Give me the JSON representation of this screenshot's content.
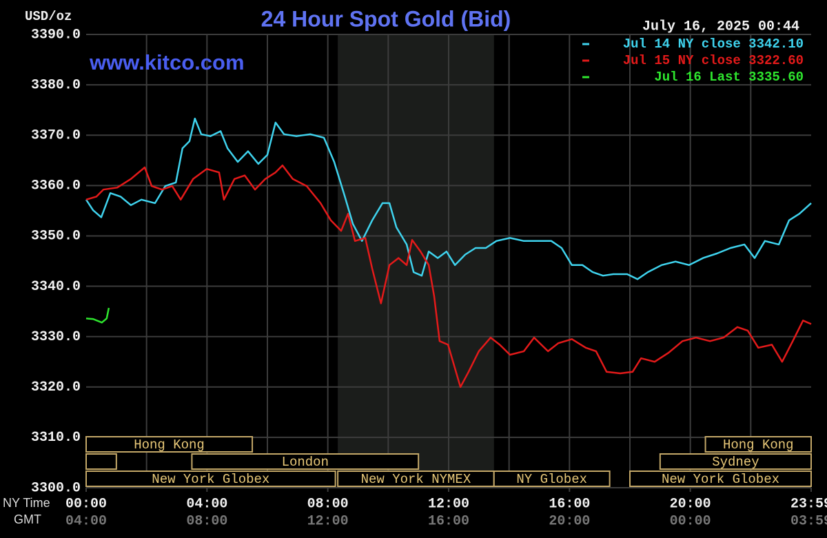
{
  "chart_data": {
    "type": "line",
    "title": "24 Hour Spot Gold (Bid)",
    "timestamp": "July 16, 2025 00:44",
    "watermark": "www.kitco.com",
    "y_label": "USD/oz",
    "x_label": "NY Time",
    "x2_label": "GMT",
    "xlim": [
      0,
      24
    ],
    "ylim": [
      3300,
      3390
    ],
    "yticks": [
      {
        "value": 3300,
        "label": "3300.0"
      },
      {
        "value": 3310,
        "label": "3310.0"
      },
      {
        "value": 3320,
        "label": "3320.0"
      },
      {
        "value": 3330,
        "label": "3330.0"
      },
      {
        "value": 3340,
        "label": "3340.0"
      },
      {
        "value": 3350,
        "label": "3350.0"
      },
      {
        "value": 3360,
        "label": "3360.0"
      },
      {
        "value": 3370,
        "label": "3370.0"
      },
      {
        "value": 3380,
        "label": "3380.0"
      },
      {
        "value": 3390,
        "label": "3390.0"
      }
    ],
    "xticks": [
      {
        "value": 0,
        "label": "00:00",
        "gmt": "04:00"
      },
      {
        "value": 4,
        "label": "04:00",
        "gmt": "08:00"
      },
      {
        "value": 8,
        "label": "08:00",
        "gmt": "12:00"
      },
      {
        "value": 12,
        "label": "12:00",
        "gmt": "16:00"
      },
      {
        "value": 16,
        "label": "16:00",
        "gmt": "20:00"
      },
      {
        "value": 20,
        "label": "20:00",
        "gmt": "00:00"
      },
      {
        "value": 24,
        "label": "23:59",
        "gmt": "03:59"
      }
    ],
    "xgrid": [
      2,
      4,
      6,
      8,
      10,
      12,
      14,
      16,
      18,
      20,
      22
    ],
    "grid": true,
    "shaded": {
      "start": 8.33,
      "end": 13.5
    },
    "legend": "top-right",
    "series": [
      {
        "name": "Jul 14 NY close 3342.10",
        "color": "#3fd3ee",
        "x": [
          0,
          0.23,
          0.5,
          0.8,
          1.14,
          1.48,
          1.83,
          2.28,
          2.62,
          2.97,
          3.19,
          3.42,
          3.6,
          3.81,
          4.11,
          4.45,
          4.68,
          5.02,
          5.36,
          5.7,
          6,
          6.27,
          6.55,
          6.96,
          7.42,
          7.87,
          8.21,
          8.56,
          8.83,
          9.13,
          9.47,
          9.81,
          10.04,
          10.27,
          10.61,
          10.84,
          11.11,
          11.34,
          11.64,
          11.93,
          12.21,
          12.55,
          12.89,
          13.23,
          13.58,
          14.03,
          14.49,
          14.94,
          15.4,
          15.74,
          16.08,
          16.43,
          16.77,
          17.11,
          17.45,
          17.91,
          18.25,
          18.59,
          19.05,
          19.51,
          19.96,
          20.42,
          20.88,
          21.33,
          21.79,
          22.13,
          22.47,
          22.93,
          23.27,
          23.61,
          24
        ],
        "values": [
          3357.2,
          3355.1,
          3353.7,
          3358.5,
          3357.8,
          3356.1,
          3357.2,
          3356.5,
          3359.9,
          3360.6,
          3367.4,
          3368.8,
          3373.3,
          3370.2,
          3369.8,
          3370.8,
          3367.4,
          3364.7,
          3366.8,
          3364.3,
          3366.1,
          3372.5,
          3370.2,
          3369.8,
          3370.2,
          3369.5,
          3364.7,
          3357.9,
          3352.4,
          3349.0,
          3353.1,
          3356.5,
          3356.5,
          3351.7,
          3348.3,
          3342.8,
          3342.1,
          3346.9,
          3345.6,
          3346.9,
          3344.2,
          3346.3,
          3347.6,
          3347.6,
          3349.0,
          3349.6,
          3349.0,
          3349.0,
          3349.0,
          3347.6,
          3344.2,
          3344.2,
          3342.8,
          3342.1,
          3342.4,
          3342.4,
          3341.4,
          3342.8,
          3344.2,
          3344.9,
          3344.2,
          3345.6,
          3346.5,
          3347.6,
          3348.3,
          3345.6,
          3349.0,
          3348.3,
          3353.1,
          3354.4,
          3356.5
        ]
      },
      {
        "name": "Jul 15 NY close 3322.60",
        "color": "#e41a1a",
        "x": [
          0,
          0.34,
          0.57,
          1.03,
          1.48,
          1.94,
          2.17,
          2.51,
          2.85,
          3.13,
          3.54,
          3.99,
          4.4,
          4.56,
          4.91,
          5.25,
          5.59,
          5.93,
          6.27,
          6.5,
          6.84,
          7.3,
          7.76,
          8.1,
          8.44,
          8.67,
          8.9,
          9.24,
          9.47,
          9.76,
          10.04,
          10.34,
          10.61,
          10.79,
          11.07,
          11.34,
          11.52,
          11.7,
          11.98,
          12.39,
          12.66,
          13,
          13.39,
          13.69,
          14.03,
          14.49,
          14.83,
          15.29,
          15.63,
          16.08,
          16.54,
          16.88,
          17.23,
          17.68,
          18.09,
          18.37,
          18.82,
          19.28,
          19.74,
          20.19,
          20.65,
          21.1,
          21.56,
          21.9,
          22.25,
          22.7,
          23.04,
          23.39,
          23.73,
          24
        ],
        "values": [
          3357.2,
          3357.8,
          3359.2,
          3359.6,
          3361.3,
          3363.6,
          3359.9,
          3359.2,
          3359.9,
          3357.2,
          3361.3,
          3363.3,
          3362.6,
          3357.2,
          3361.3,
          3362.0,
          3359.2,
          3361.3,
          3362.6,
          3364.0,
          3361.3,
          3359.9,
          3356.5,
          3353.1,
          3351.0,
          3354.4,
          3349.0,
          3349.6,
          3343.5,
          3336.6,
          3344.2,
          3345.6,
          3344.2,
          3349.2,
          3346.9,
          3344.2,
          3338.0,
          3329.1,
          3328.4,
          3320.0,
          3323.0,
          3327.1,
          3329.8,
          3328.4,
          3326.4,
          3327.1,
          3329.8,
          3327.1,
          3328.7,
          3329.5,
          3327.8,
          3327.1,
          3323.0,
          3322.7,
          3323.0,
          3325.7,
          3325.0,
          3326.8,
          3329.1,
          3329.8,
          3329.1,
          3329.8,
          3331.9,
          3331.2,
          3327.8,
          3328.4,
          3325.0,
          3329.1,
          3333.2,
          3332.5
        ]
      },
      {
        "name": "Jul 16 Last 3335.60",
        "color": "#2ee62e",
        "x": [
          0,
          0.23,
          0.52,
          0.68,
          0.75
        ],
        "values": [
          3333.6,
          3333.5,
          3332.8,
          3333.6,
          3335.7
        ]
      }
    ],
    "sessions": [
      {
        "row": 1,
        "start": 0,
        "end": 5.5,
        "label": "Hong Kong"
      },
      {
        "row": 1,
        "start": 20.5,
        "end": 24,
        "label": "Hong Kong"
      },
      {
        "row": 2,
        "start": 0,
        "end": 1
      },
      {
        "row": 2,
        "start": 3.5,
        "end": 11,
        "label": "London"
      },
      {
        "row": 2,
        "start": 19,
        "end": 24,
        "label": "Sydney"
      },
      {
        "row": 3,
        "start": 0,
        "end": 8.25,
        "label": "New York Globex"
      },
      {
        "row": 3,
        "start": 8.33,
        "end": 13.5,
        "label": "New York NYMEX"
      },
      {
        "row": 3,
        "start": 13.5,
        "end": 17.33,
        "label": "NY Globex"
      },
      {
        "row": 3,
        "start": 18,
        "end": 24,
        "label": "New York Globex"
      }
    ]
  }
}
